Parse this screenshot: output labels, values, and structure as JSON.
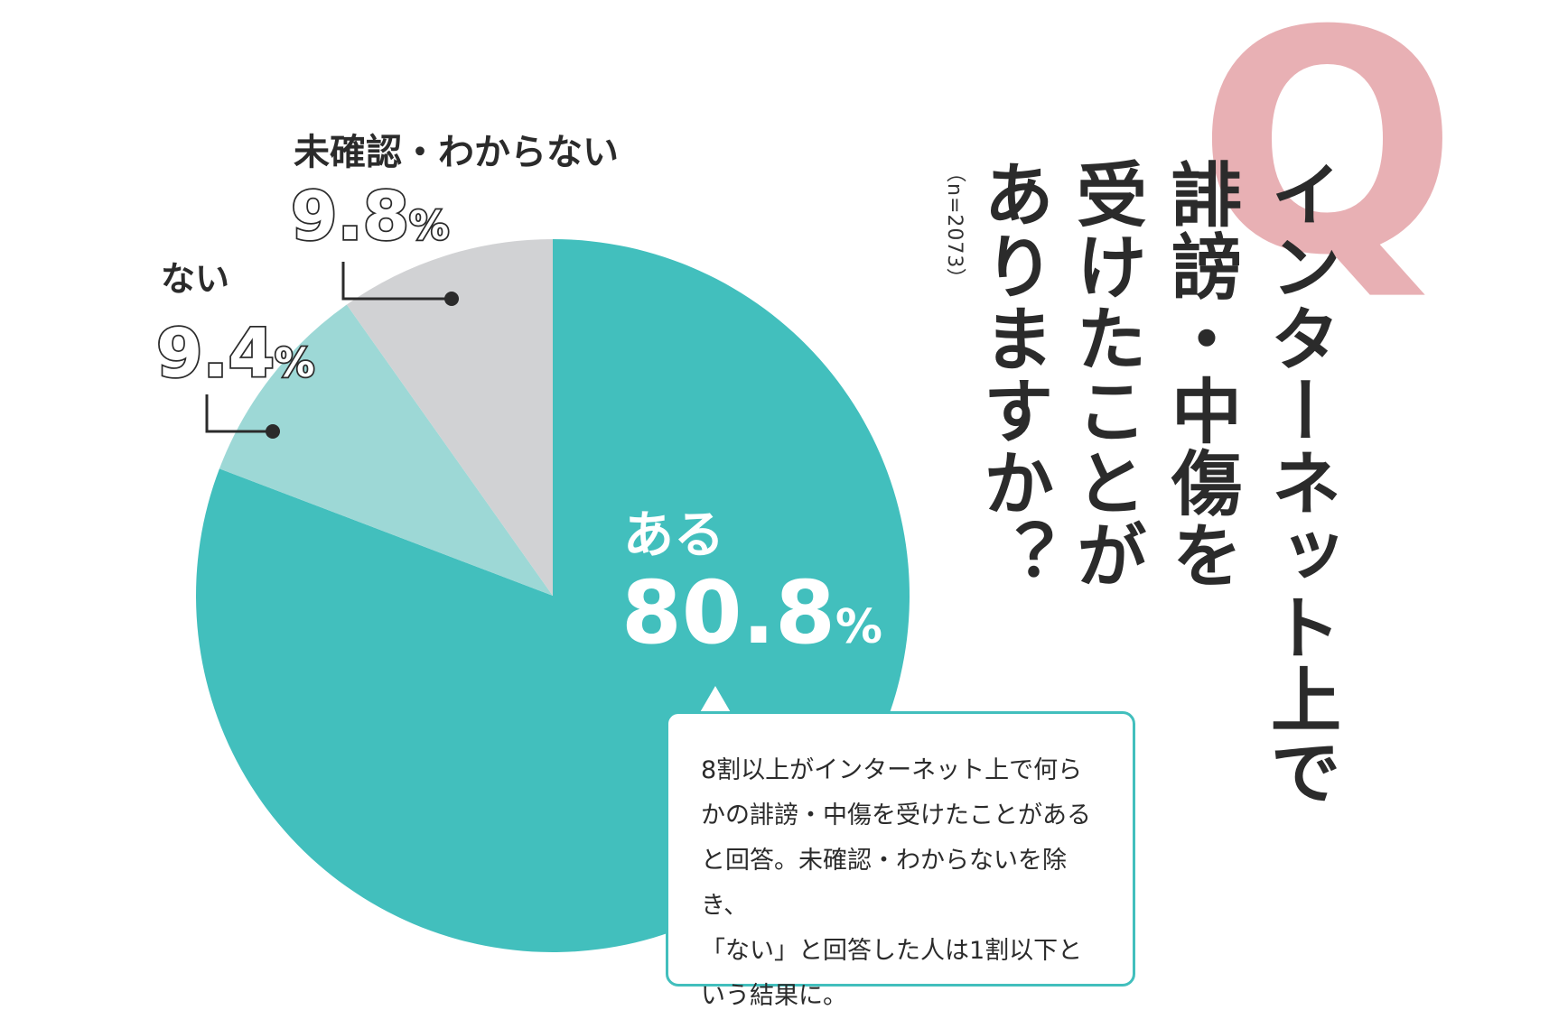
{
  "question": {
    "mark": "Q",
    "lines": [
      "インターネット上で",
      "誹謗・中傷を",
      "受けたことが",
      "ありますか？"
    ],
    "sample_size": "（n=2073）"
  },
  "chart_data": {
    "type": "pie",
    "title": "インターネット上で誹謗・中傷を受けたことがありますか？",
    "slices": [
      {
        "label": "ある",
        "value": 80.8,
        "display": "80.8",
        "unit": "%",
        "color": "#42bfbd"
      },
      {
        "label": "ない",
        "value": 9.4,
        "display": "9.4",
        "unit": "%",
        "color": "#9dd8d6"
      },
      {
        "label": "未確認・わからない",
        "value": 9.8,
        "display": "9.8",
        "unit": "%",
        "color": "#d1d2d4"
      }
    ],
    "start": "12 o'clock",
    "direction": "clockwise"
  },
  "callout": {
    "lines": [
      "8割以上がインターネット上で何ら",
      "かの誹謗・中傷を受けたことがある",
      "と回答。未確認・わからないを除き、",
      "「ない」と回答した人は1割以下と",
      "いう結果に。"
    ],
    "border_color": "#42bfbd"
  }
}
